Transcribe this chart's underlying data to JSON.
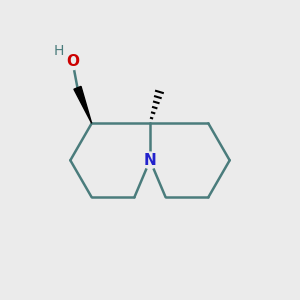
{
  "bg_color": "#ebebeb",
  "bond_color": "#4a7c7c",
  "n_color": "#2222cc",
  "o_color": "#cc0000",
  "h_color": "#4a7c7c",
  "bond_width": 1.8,
  "figsize": [
    3.0,
    3.0
  ],
  "dpi": 100,
  "xlim": [
    0,
    10
  ],
  "ylim": [
    0,
    10
  ]
}
